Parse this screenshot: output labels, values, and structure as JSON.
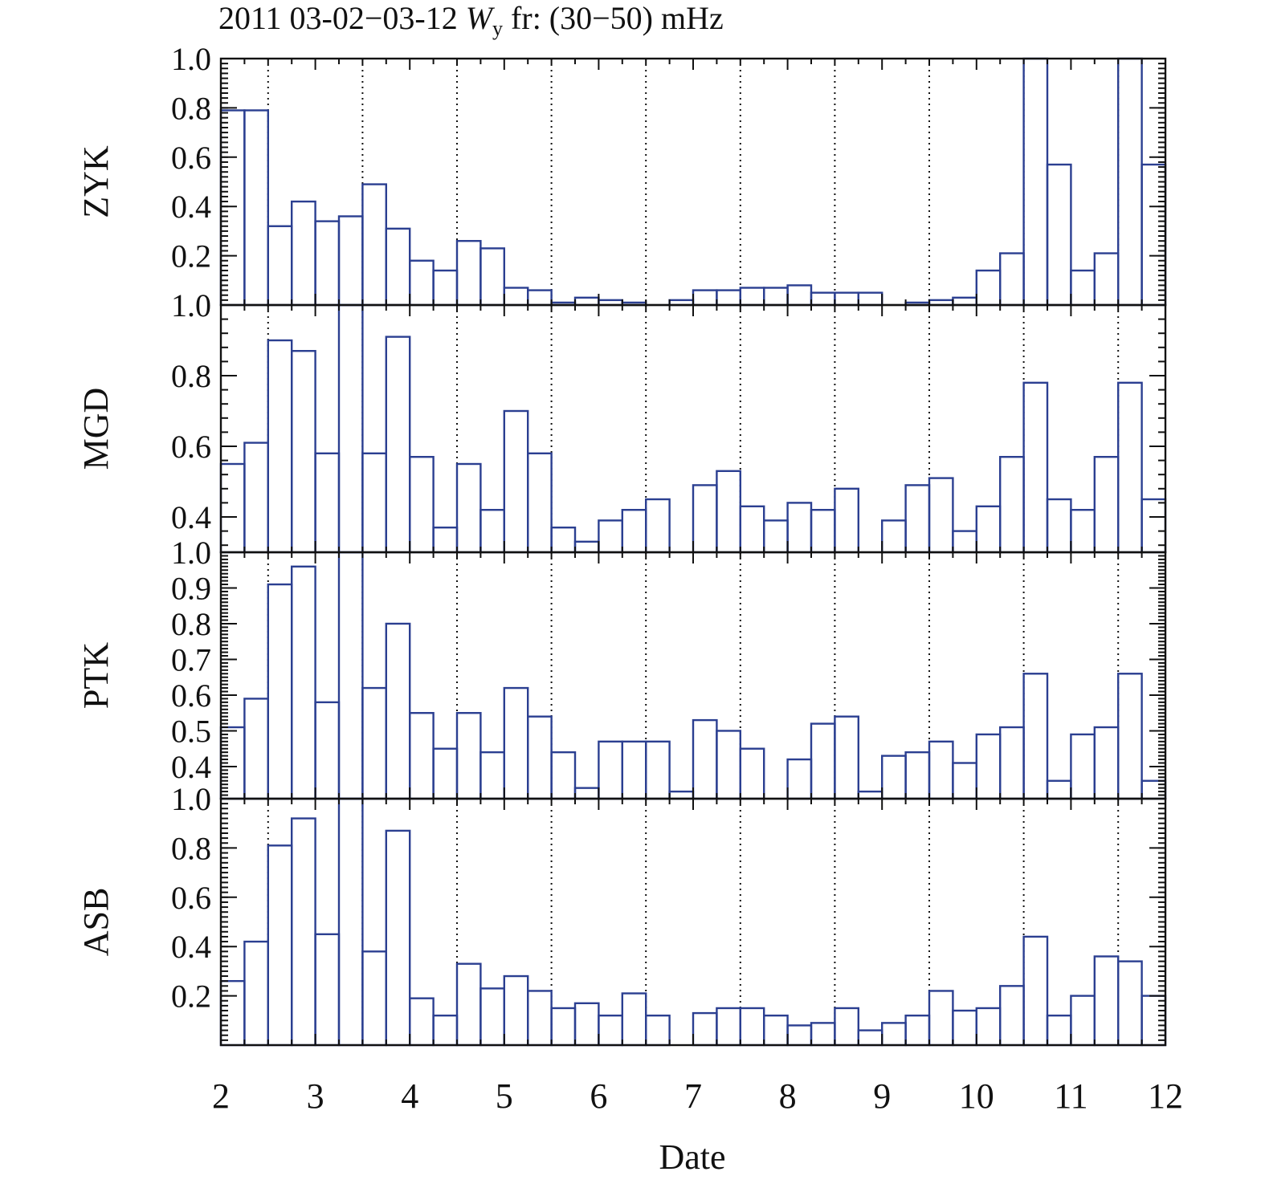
{
  "chart_data": {
    "type": "bar",
    "title": "2011 03-02−03-12 ",
    "title_var": "W",
    "title_sub": "y",
    "title_rest": " fr: (30−50) mHz",
    "xlabel": "Date",
    "xlim": [
      2,
      12
    ],
    "x_ticks": [
      "2",
      "3",
      "4",
      "5",
      "6",
      "7",
      "8",
      "9",
      "10",
      "11",
      "12"
    ],
    "bin_width_days": 0.25,
    "dotted_lines_at": [
      2.5,
      3.5,
      4.5,
      5.5,
      6.5,
      7.5,
      8.5,
      9.5,
      10.5,
      11.5
    ],
    "bar_color": "#2b3f91",
    "grid": false,
    "panels": [
      {
        "ylabel": "ZYK",
        "ylim": [
          0.0,
          1.0
        ],
        "y_ticks": [
          "0.2",
          "0.4",
          "0.6",
          "0.8",
          "1.0"
        ],
        "y_tick_values": [
          0.2,
          0.4,
          0.6,
          0.8,
          1.0
        ],
        "values": [
          0.79,
          0.79,
          0.32,
          0.42,
          0.34,
          0.36,
          0.49,
          0.31,
          0.18,
          0.14,
          0.26,
          0.23,
          0.07,
          0.06,
          0.01,
          0.03,
          0.02,
          0.01,
          0.0,
          0.02,
          0.06,
          0.06,
          0.07,
          0.07,
          0.08,
          0.05,
          0.05,
          0.05,
          0.0,
          0.01,
          0.02,
          0.03,
          0.14,
          0.21,
          1.0,
          0.57,
          0.14,
          0.21,
          1.0,
          0.57
        ]
      },
      {
        "ylabel": "MGD",
        "ylim": [
          0.3,
          1.0
        ],
        "y_ticks": [
          "0.4",
          "0.6",
          "0.8",
          "1.0"
        ],
        "y_tick_values": [
          0.4,
          0.6,
          0.8,
          1.0
        ],
        "values": [
          0.55,
          0.61,
          0.9,
          0.87,
          0.58,
          1.0,
          0.58,
          0.91,
          0.57,
          0.37,
          0.55,
          0.42,
          0.7,
          0.58,
          0.37,
          0.33,
          0.39,
          0.42,
          0.45,
          0.3,
          0.49,
          0.53,
          0.43,
          0.39,
          0.44,
          0.42,
          0.48,
          0.3,
          0.39,
          0.49,
          0.51,
          0.36,
          0.43,
          0.57,
          0.78,
          0.45,
          0.42,
          0.57,
          0.78,
          0.45
        ]
      },
      {
        "ylabel": "PTK",
        "ylim": [
          0.31,
          1.0
        ],
        "y_ticks": [
          "0.4",
          "0.5",
          "0.6",
          "0.7",
          "0.8",
          "0.9",
          "1.0"
        ],
        "y_tick_values": [
          0.4,
          0.5,
          0.6,
          0.7,
          0.8,
          0.9,
          1.0
        ],
        "values": [
          0.51,
          0.59,
          0.91,
          0.96,
          0.58,
          1.0,
          0.62,
          0.8,
          0.55,
          0.45,
          0.55,
          0.44,
          0.62,
          0.54,
          0.44,
          0.34,
          0.47,
          0.47,
          0.47,
          0.33,
          0.53,
          0.5,
          0.45,
          0.31,
          0.42,
          0.52,
          0.54,
          0.33,
          0.43,
          0.44,
          0.47,
          0.41,
          0.49,
          0.51,
          0.66,
          0.36,
          0.49,
          0.51,
          0.66,
          0.36
        ]
      },
      {
        "ylabel": "ASB",
        "ylim": [
          0.0,
          1.0
        ],
        "y_ticks": [
          "0.2",
          "0.4",
          "0.6",
          "0.8",
          "1.0"
        ],
        "y_tick_values": [
          0.2,
          0.4,
          0.6,
          0.8,
          1.0
        ],
        "values": [
          0.26,
          0.42,
          0.81,
          0.92,
          0.45,
          1.0,
          0.38,
          0.87,
          0.19,
          0.12,
          0.33,
          0.23,
          0.28,
          0.22,
          0.15,
          0.17,
          0.12,
          0.21,
          0.12,
          0.0,
          0.13,
          0.15,
          0.15,
          0.12,
          0.08,
          0.09,
          0.15,
          0.06,
          0.09,
          0.12,
          0.22,
          0.14,
          0.15,
          0.24,
          0.44,
          0.12,
          0.2,
          0.36,
          0.34,
          0.2
        ]
      }
    ]
  }
}
